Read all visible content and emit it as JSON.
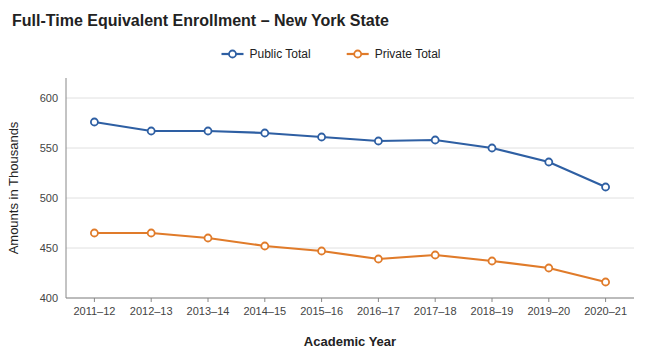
{
  "chart_data": {
    "type": "line",
    "title": "Full-Time Equivalent Enrollment – New York State",
    "x_label": "Academic Year",
    "y_label": "Amounts in Thousands",
    "categories": [
      "2011–12",
      "2012–13",
      "2013–14",
      "2014–15",
      "2015–16",
      "2016–17",
      "2017–18",
      "2018–19",
      "2019–20",
      "2020–21"
    ],
    "series": [
      {
        "name": "Public Total",
        "color": "#2E5FA3",
        "marker": "circle",
        "values": [
          576,
          567,
          567,
          565,
          561,
          557,
          558,
          550,
          536,
          511
        ]
      },
      {
        "name": "Private Total",
        "color": "#E07B2A",
        "marker": "circle",
        "values": [
          465,
          465,
          460,
          452,
          447,
          439,
          443,
          437,
          430,
          416
        ]
      }
    ],
    "ylim": [
      400,
      620
    ],
    "yticks": [
      400,
      450,
      500,
      550,
      600
    ],
    "grid": true,
    "legend": "top"
  }
}
